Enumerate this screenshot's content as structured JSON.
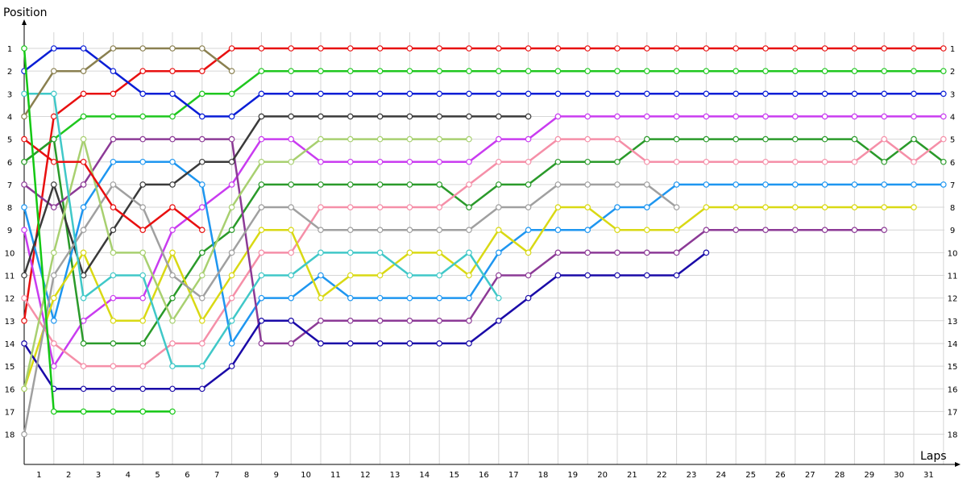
{
  "chart_data": {
    "type": "line",
    "xlabel": "Laps",
    "ylabel": "Position",
    "xlim": [
      0,
      31.5
    ],
    "ylim": [
      1,
      18
    ],
    "grid": true,
    "legend": "none",
    "laps": [
      1,
      2,
      3,
      4,
      5,
      6,
      7,
      8,
      9,
      10,
      11,
      12,
      13,
      14,
      15,
      16,
      17,
      18,
      19,
      20,
      21,
      22,
      23,
      24,
      25,
      26,
      27,
      28,
      29,
      30,
      31
    ],
    "positions": [
      1,
      2,
      3,
      4,
      5,
      6,
      7,
      8,
      9,
      10,
      11,
      12,
      13,
      14,
      15,
      16,
      17,
      18
    ],
    "series": [
      {
        "color": "#e81010",
        "values": [
          13,
          4,
          3,
          3,
          2,
          2,
          2,
          1,
          1,
          1,
          1,
          1,
          1,
          1,
          1,
          1,
          1,
          1,
          1,
          1,
          1,
          1,
          1,
          1,
          1,
          1,
          1,
          1,
          1,
          1,
          1,
          1
        ]
      },
      {
        "color": "#1fc71f",
        "values": [
          6,
          5,
          4,
          4,
          4,
          4,
          3,
          3,
          2,
          2,
          2,
          2,
          2,
          2,
          2,
          2,
          2,
          2,
          2,
          2,
          2,
          2,
          2,
          2,
          2,
          2,
          2,
          2,
          2,
          2,
          2,
          2
        ]
      },
      {
        "color": "#0a1ed6",
        "values": [
          2,
          1,
          1,
          2,
          3,
          3,
          4,
          4,
          3,
          3,
          3,
          3,
          3,
          3,
          3,
          3,
          3,
          3,
          3,
          3,
          3,
          3,
          3,
          3,
          3,
          3,
          3,
          3,
          3,
          3,
          3,
          3
        ]
      },
      {
        "color": "#c93cf0",
        "values": [
          9,
          15,
          13,
          12,
          12,
          9,
          8,
          7,
          5,
          5,
          6,
          6,
          6,
          6,
          6,
          6,
          5,
          5,
          4,
          4,
          4,
          4,
          4,
          4,
          4,
          4,
          4,
          4,
          4,
          4,
          4,
          4
        ]
      },
      {
        "color": "#2a9a2a",
        "values": [
          6,
          5,
          14,
          14,
          14,
          12,
          10,
          9,
          7,
          7,
          7,
          7,
          7,
          7,
          7,
          8,
          7,
          7,
          6,
          6,
          6,
          5,
          5,
          5,
          5,
          5,
          5,
          5,
          5,
          6,
          5,
          6
        ]
      },
      {
        "color": "#f58fa8",
        "values": [
          12,
          14,
          15,
          15,
          15,
          14,
          14,
          12,
          10,
          10,
          8,
          8,
          8,
          8,
          8,
          7,
          6,
          6,
          5,
          5,
          5,
          6,
          6,
          6,
          6,
          6,
          6,
          6,
          6,
          5,
          6,
          5
        ]
      },
      {
        "color": "#1e96f0",
        "values": [
          8,
          13,
          8,
          6,
          6,
          6,
          7,
          14,
          12,
          12,
          11,
          12,
          12,
          12,
          12,
          12,
          10,
          9,
          9,
          9,
          8,
          8,
          7,
          7,
          7,
          7,
          7,
          7,
          7,
          7,
          7,
          7
        ]
      },
      {
        "color": "#d9d914",
        "values": [
          16,
          12,
          10,
          13,
          13,
          10,
          13,
          11,
          9,
          9,
          12,
          11,
          11,
          10,
          10,
          11,
          9,
          10,
          8,
          8,
          9,
          9,
          9,
          8,
          8,
          8,
          8,
          8,
          8,
          8,
          8
        ]
      },
      {
        "color": "#8c3a96",
        "values": [
          7,
          8,
          7,
          5,
          5,
          5,
          5,
          5,
          14,
          14,
          13,
          13,
          13,
          13,
          13,
          13,
          11,
          11,
          10,
          10,
          10,
          10,
          10,
          9,
          9,
          9,
          9,
          9,
          9,
          9
        ]
      },
      {
        "color": "#1a0aa8",
        "values": [
          14,
          16,
          16,
          16,
          16,
          16,
          16,
          15,
          13,
          13,
          14,
          14,
          14,
          14,
          14,
          14,
          13,
          12,
          11,
          11,
          11,
          11,
          11,
          10
        ]
      },
      {
        "color": "#3a3a3a",
        "values": [
          11,
          7,
          11,
          9,
          7,
          7,
          6,
          6,
          4,
          4,
          4,
          4,
          4,
          4,
          4,
          4,
          4,
          4
        ]
      },
      {
        "color": "#a0a0a0",
        "values": [
          18,
          11,
          9,
          7,
          8,
          11,
          12,
          10,
          8,
          8,
          9,
          9,
          9,
          9,
          9,
          9,
          8,
          8,
          7,
          7,
          7,
          7,
          8
        ]
      },
      {
        "color": "#a8d070",
        "values": [
          16,
          10,
          5,
          10,
          10,
          13,
          11,
          8,
          6,
          6,
          5,
          5,
          5,
          5,
          5,
          5
        ]
      },
      {
        "color": "#40c8c8",
        "values": [
          3,
          3,
          12,
          11,
          11,
          15,
          15,
          13,
          11,
          11,
          10,
          10,
          10,
          11,
          11,
          10,
          12
        ]
      },
      {
        "color": "#8a8050",
        "values": [
          4,
          2,
          2,
          1,
          1,
          1,
          1,
          2
        ]
      },
      {
        "color": "#e81010",
        "values": [
          5,
          6,
          6,
          8,
          9,
          8,
          9
        ]
      },
      {
        "color": "#14c814",
        "values": [
          1,
          17,
          17,
          17,
          17,
          17
        ]
      }
    ]
  }
}
